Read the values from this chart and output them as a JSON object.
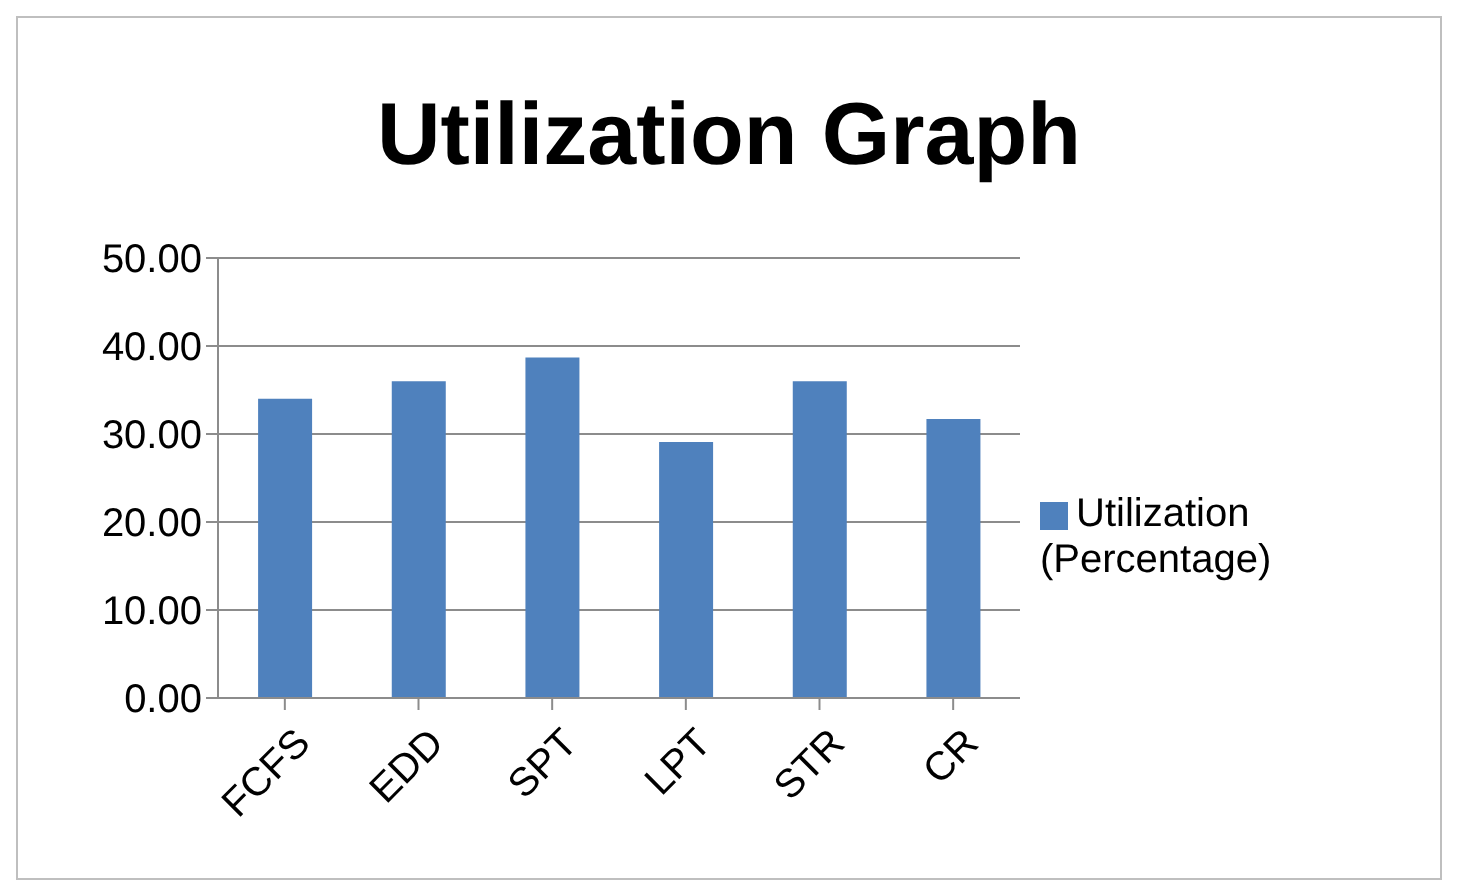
{
  "chart_data": {
    "type": "bar",
    "title": "Utilization Graph",
    "categories": [
      "FCFS",
      "EDD",
      "SPT",
      "LPT",
      "STR",
      "CR"
    ],
    "series": [
      {
        "name": "Utilization (Percentage)",
        "color": "#4f81bd",
        "values": [
          34.0,
          36.0,
          38.7,
          29.1,
          36.0,
          31.7
        ]
      }
    ],
    "ylim": [
      0,
      50
    ],
    "yticks": [
      {
        "value": 0,
        "label": "0.00"
      },
      {
        "value": 10,
        "label": "10.00"
      },
      {
        "value": 20,
        "label": "20.00"
      },
      {
        "value": 30,
        "label": "30.00"
      },
      {
        "value": 40,
        "label": "40.00"
      },
      {
        "value": 50,
        "label": "50.00"
      }
    ],
    "grid": "y",
    "legend": "right"
  }
}
